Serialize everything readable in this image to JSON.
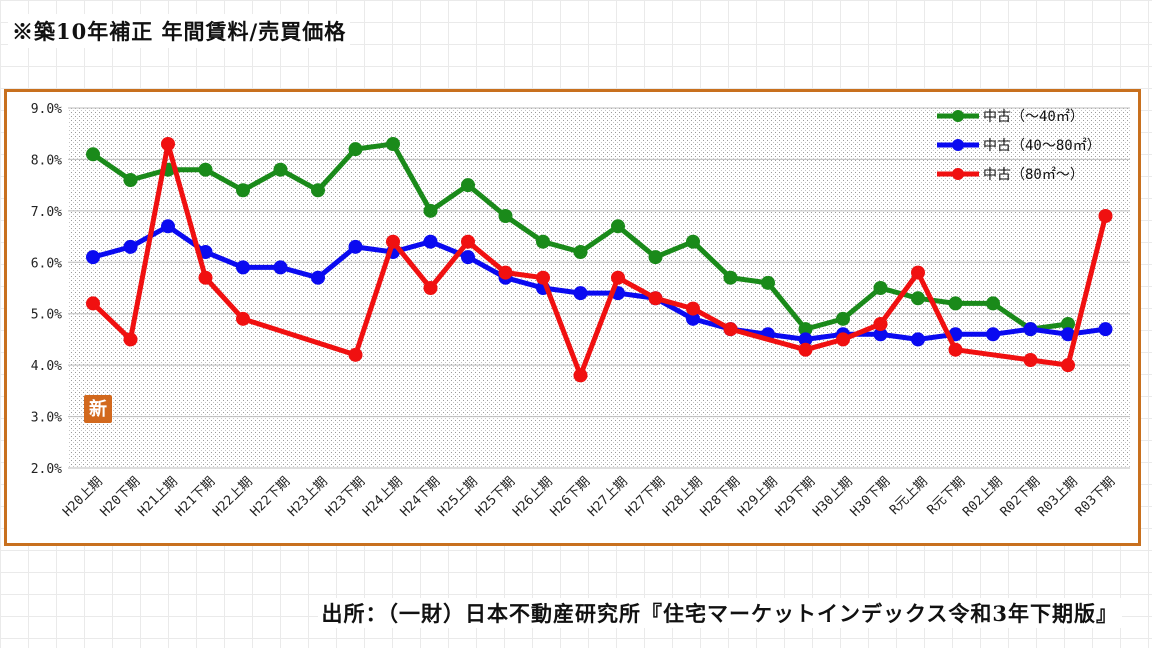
{
  "title": "※築10年補正 年間賃料/売買価格",
  "source": "出所：（一財）日本不動産研究所『住宅マーケットインデックス令和3年下期版』",
  "badge_text": "新",
  "colors": {
    "frame": "#c8701e",
    "badge": "#d2691e",
    "series": [
      "#1a8a1a",
      "#0a0af0",
      "#f01010"
    ]
  },
  "chart_data": {
    "type": "line",
    "title": "",
    "xlabel": "",
    "ylabel": "",
    "ylim": [
      2.0,
      9.0
    ],
    "yticks": [
      "9.0%",
      "8.0%",
      "7.0%",
      "6.0%",
      "5.0%",
      "4.0%",
      "3.0%",
      "2.0%"
    ],
    "grid": true,
    "legend_position": "top-right",
    "categories": [
      "H20上期",
      "H20下期",
      "H21上期",
      "H21下期",
      "H22上期",
      "H22下期",
      "H23上期",
      "H23下期",
      "H24上期",
      "H24下期",
      "H25上期",
      "H25下期",
      "H26上期",
      "H26下期",
      "H27上期",
      "H27下期",
      "H28上期",
      "H28下期",
      "H29上期",
      "H29下期",
      "H30上期",
      "H30下期",
      "R元上期",
      "R元下期",
      "R02上期",
      "R02下期",
      "R03上期",
      "R03下期"
    ],
    "series": [
      {
        "name": "中古（～40㎡）",
        "values": [
          8.1,
          7.6,
          7.8,
          7.8,
          7.4,
          7.8,
          7.4,
          8.2,
          8.3,
          7.0,
          7.5,
          6.9,
          6.4,
          6.2,
          6.7,
          6.1,
          6.4,
          5.7,
          5.6,
          4.7,
          4.9,
          5.5,
          5.3,
          5.2,
          5.2,
          4.7,
          4.8,
          null
        ]
      },
      {
        "name": "中古（40～80㎡）",
        "values": [
          6.1,
          6.3,
          6.7,
          6.2,
          5.9,
          5.9,
          5.7,
          6.3,
          6.2,
          6.4,
          6.1,
          5.7,
          5.5,
          5.4,
          5.4,
          5.3,
          4.9,
          4.7,
          4.6,
          4.5,
          4.6,
          4.6,
          4.5,
          4.6,
          4.6,
          4.7,
          4.6,
          4.7
        ]
      },
      {
        "name": "中古（80㎡～）",
        "values": [
          5.2,
          4.5,
          8.3,
          5.7,
          4.9,
          null,
          null,
          4.2,
          6.4,
          5.5,
          6.4,
          5.8,
          5.7,
          3.8,
          5.7,
          5.3,
          5.1,
          4.7,
          null,
          4.3,
          4.5,
          4.8,
          5.8,
          4.3,
          null,
          4.1,
          4.0,
          6.9
        ]
      }
    ]
  }
}
